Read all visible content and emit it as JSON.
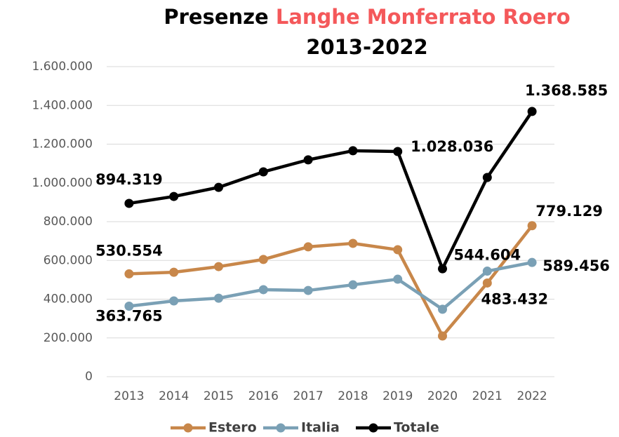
{
  "chart_data": {
    "type": "line",
    "title": "Presenze",
    "title_highlight": "Langhe Monferrato Roero",
    "title_highlight_color": "#f4585a",
    "subtitle": "2013-2022",
    "categories": [
      "2013",
      "2014",
      "2015",
      "2016",
      "2017",
      "2018",
      "2019",
      "2020",
      "2021",
      "2022"
    ],
    "series": [
      {
        "name": "Estero",
        "color": "#c8874a",
        "values": [
          530554,
          539000,
          568000,
          605000,
          670000,
          688000,
          655000,
          210000,
          483432,
          779129
        ],
        "value_labels": [
          "530.554",
          null,
          null,
          null,
          null,
          null,
          null,
          null,
          "483.432",
          "779.129"
        ]
      },
      {
        "name": "Italia",
        "color": "#7aa0b5",
        "values": [
          363765,
          391000,
          405000,
          449000,
          445000,
          474000,
          503000,
          348000,
          544604,
          589456
        ],
        "value_labels": [
          "363.765",
          null,
          null,
          null,
          null,
          null,
          null,
          null,
          "544.604",
          "589.456"
        ]
      },
      {
        "name": "Totale",
        "color": "#000000",
        "values": [
          894319,
          930000,
          977000,
          1057000,
          1119000,
          1166000,
          1162000,
          557000,
          1028036,
          1368585
        ],
        "value_labels": [
          "894.319",
          null,
          null,
          null,
          null,
          null,
          null,
          null,
          "1.028.036",
          "1.368.585"
        ]
      }
    ],
    "ylim": [
      0,
      1600000
    ],
    "yticks": [
      0,
      {
        "value": 200000,
        "label": "200.000"
      },
      {
        "value": 400000,
        "label": "400.000"
      },
      {
        "value": 600000,
        "label": "600.000"
      },
      {
        "value": 800000,
        "label": "800.000"
      },
      {
        "value": 1000000,
        "label": "1.000.000"
      },
      {
        "value": 1200000,
        "label": "1.200.000"
      },
      {
        "value": 1400000,
        "label": "1.400.000"
      },
      {
        "value": 1600000,
        "label": "1.600.000"
      }
    ],
    "grid": true,
    "legend": "bottom"
  }
}
